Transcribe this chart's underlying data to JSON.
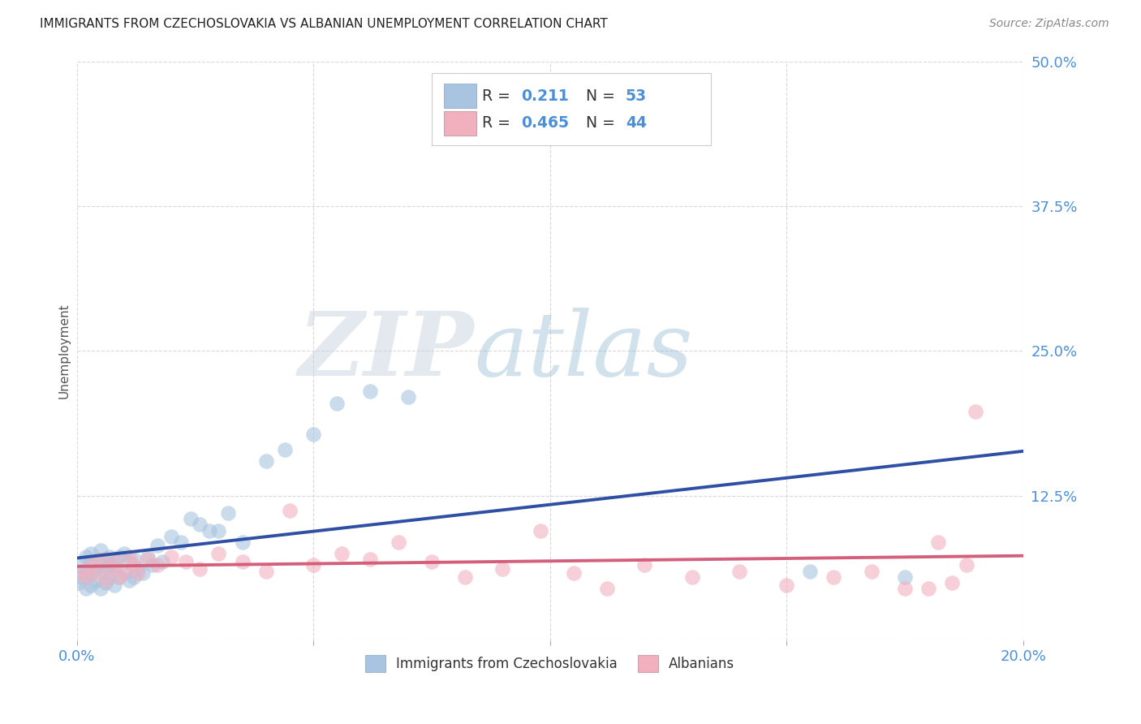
{
  "title": "IMMIGRANTS FROM CZECHOSLOVAKIA VS ALBANIAN UNEMPLOYMENT CORRELATION CHART",
  "source": "Source: ZipAtlas.com",
  "ylabel": "Unemployment",
  "xlim": [
    0.0,
    0.2
  ],
  "ylim": [
    0.0,
    0.5
  ],
  "yticks": [
    0.0,
    0.125,
    0.25,
    0.375,
    0.5
  ],
  "ytick_labels": [
    "",
    "12.5%",
    "25.0%",
    "37.5%",
    "50.0%"
  ],
  "xticks": [
    0.0,
    0.05,
    0.1,
    0.15,
    0.2
  ],
  "xtick_labels": [
    "0.0%",
    "",
    "",
    "",
    "20.0%"
  ],
  "background_color": "#ffffff",
  "grid_color": "#d8d8d8",
  "blue_color": "#a8c4e0",
  "pink_color": "#f0b0be",
  "blue_line_color": "#2e4fa3",
  "pink_line_color": "#d45f7a",
  "legend_R1": "0.211",
  "legend_N1": "53",
  "legend_R2": "0.465",
  "legend_N2": "44",
  "watermark_zip": "ZIP",
  "watermark_atlas": "atlas",
  "blue_scatter_x": [
    0.0005,
    0.001,
    0.001,
    0.002,
    0.002,
    0.002,
    0.003,
    0.003,
    0.003,
    0.003,
    0.004,
    0.004,
    0.005,
    0.005,
    0.005,
    0.006,
    0.006,
    0.006,
    0.007,
    0.007,
    0.007,
    0.008,
    0.008,
    0.009,
    0.009,
    0.01,
    0.01,
    0.011,
    0.011,
    0.012,
    0.012,
    0.013,
    0.014,
    0.015,
    0.016,
    0.017,
    0.018,
    0.02,
    0.022,
    0.024,
    0.026,
    0.028,
    0.03,
    0.032,
    0.035,
    0.04,
    0.044,
    0.05,
    0.055,
    0.062,
    0.07,
    0.155,
    0.175
  ],
  "blue_scatter_y": [
    0.05,
    0.055,
    0.065,
    0.045,
    0.06,
    0.072,
    0.048,
    0.058,
    0.068,
    0.075,
    0.052,
    0.062,
    0.045,
    0.065,
    0.078,
    0.05,
    0.06,
    0.07,
    0.055,
    0.065,
    0.072,
    0.048,
    0.065,
    0.055,
    0.072,
    0.058,
    0.075,
    0.052,
    0.068,
    0.055,
    0.07,
    0.062,
    0.058,
    0.072,
    0.065,
    0.082,
    0.068,
    0.09,
    0.085,
    0.105,
    0.1,
    0.095,
    0.095,
    0.11,
    0.085,
    0.155,
    0.165,
    0.178,
    0.205,
    0.215,
    0.21,
    0.06,
    0.055
  ],
  "pink_scatter_x": [
    0.001,
    0.002,
    0.003,
    0.004,
    0.005,
    0.006,
    0.007,
    0.008,
    0.009,
    0.01,
    0.011,
    0.012,
    0.013,
    0.015,
    0.017,
    0.02,
    0.023,
    0.026,
    0.03,
    0.035,
    0.04,
    0.045,
    0.05,
    0.056,
    0.062,
    0.068,
    0.075,
    0.082,
    0.09,
    0.098,
    0.105,
    0.112,
    0.12,
    0.13,
    0.14,
    0.15,
    0.16,
    0.168,
    0.175,
    0.18,
    0.182,
    0.185,
    0.188,
    0.19
  ],
  "pink_scatter_y": [
    0.06,
    0.055,
    0.065,
    0.058,
    0.07,
    0.052,
    0.062,
    0.068,
    0.055,
    0.06,
    0.072,
    0.065,
    0.058,
    0.07,
    0.065,
    0.072,
    0.068,
    0.062,
    0.075,
    0.068,
    0.06,
    0.112,
    0.065,
    0.075,
    0.07,
    0.085,
    0.068,
    0.055,
    0.062,
    0.095,
    0.058,
    0.045,
    0.065,
    0.055,
    0.06,
    0.048,
    0.055,
    0.06,
    0.045,
    0.045,
    0.085,
    0.05,
    0.065,
    0.198
  ]
}
